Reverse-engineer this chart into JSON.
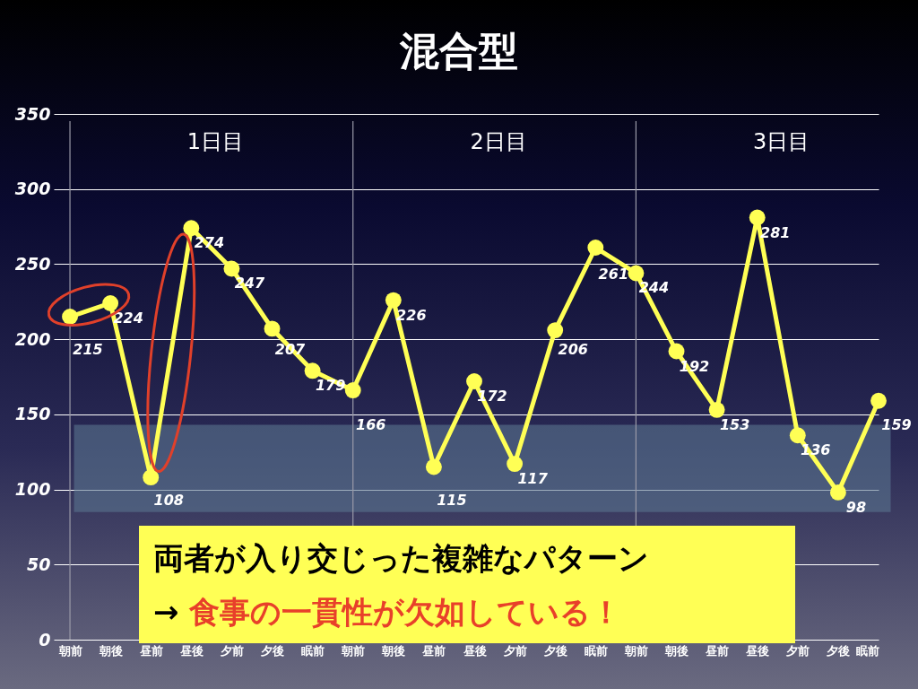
{
  "chart_data": {
    "type": "line",
    "title": "混合型",
    "categories": [
      "朝前",
      "朝後",
      "昼前",
      "昼後",
      "夕前",
      "夕後",
      "眠前",
      "朝前",
      "朝後",
      "昼前",
      "昼後",
      "夕前",
      "夕後",
      "眠前",
      "朝前",
      "朝後",
      "昼前",
      "昼後",
      "夕前",
      "夕後",
      "眠前"
    ],
    "series": [
      {
        "color": "#ffff55",
        "values": [
          215,
          224,
          108,
          274,
          247,
          207,
          179,
          166,
          226,
          115,
          172,
          117,
          206,
          261,
          244,
          192,
          153,
          281,
          136,
          98,
          159
        ]
      }
    ],
    "ylim": [
      0,
      350
    ],
    "yticks": [
      0,
      50,
      100,
      150,
      200,
      250,
      300,
      350
    ],
    "grid": true,
    "marker": "circle",
    "data_labels": true,
    "bands": [
      {
        "axis": "y",
        "from": 85,
        "to": 143,
        "color": "#5a7590"
      }
    ],
    "annotations": [
      "1日目",
      "2日目",
      "3日目",
      "両者が入り交じった複雑なパターン",
      "→ 食事の一貫性が欠如している！"
    ]
  }
}
